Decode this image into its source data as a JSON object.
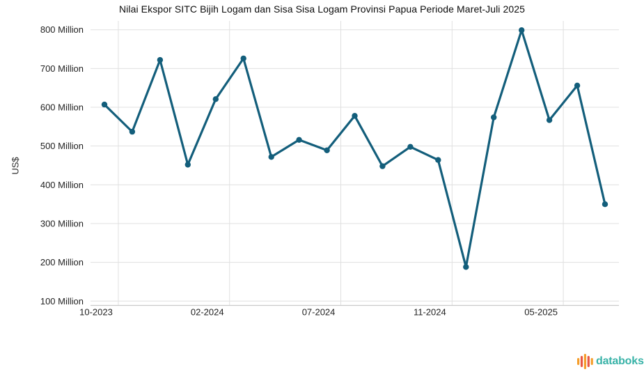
{
  "chart": {
    "line_color": "#135e7b",
    "grid_color": "#e0e0e0",
    "axis_line_color": "#c9c9c9",
    "label_color": "#212121",
    "title_color": "#0b0b0b"
  },
  "chart_data": {
    "type": "line",
    "title": "Nilai Ekspor SITC Bijih Logam dan Sisa Sisa Logam Provinsi Papua Periode Maret-Juli 2025",
    "xlabel": "",
    "ylabel": "US$",
    "unit": "Million US$",
    "ylim": [
      100,
      800
    ],
    "grid": true,
    "legend": false,
    "num_points": 19,
    "values": [
      607,
      537,
      722,
      452,
      621,
      726,
      472,
      516,
      489,
      578,
      448,
      498,
      464,
      188,
      574,
      799,
      567,
      656,
      350
    ],
    "x_ticks": [
      {
        "index": 0,
        "label": "10-2023"
      },
      {
        "index": 4,
        "label": "02-2024"
      },
      {
        "index": 8,
        "label": "07-2024"
      },
      {
        "index": 12,
        "label": "11-2024"
      },
      {
        "index": 16,
        "label": "05-2025"
      }
    ],
    "y_ticks": [
      {
        "value": 800,
        "label": "800 Million"
      },
      {
        "value": 700,
        "label": "700 Million"
      },
      {
        "value": 600,
        "label": "600 Million"
      },
      {
        "value": 500,
        "label": "500 Million"
      },
      {
        "value": 400,
        "label": "400 Million"
      },
      {
        "value": 300,
        "label": "300 Million"
      },
      {
        "value": 200,
        "label": "200 Million"
      },
      {
        "value": 100,
        "label": "100 Million"
      }
    ]
  },
  "footer": {
    "logo_text": "databoks",
    "logo_text_color": "#38b2a7",
    "logo_bars": [
      {
        "height": 10,
        "color": "#f59e2b"
      },
      {
        "height": 16,
        "color": "#e85742"
      },
      {
        "height": 22,
        "color": "#f59e2b"
      },
      {
        "height": 16,
        "color": "#e85742"
      },
      {
        "height": 10,
        "color": "#f59e2b"
      }
    ]
  }
}
